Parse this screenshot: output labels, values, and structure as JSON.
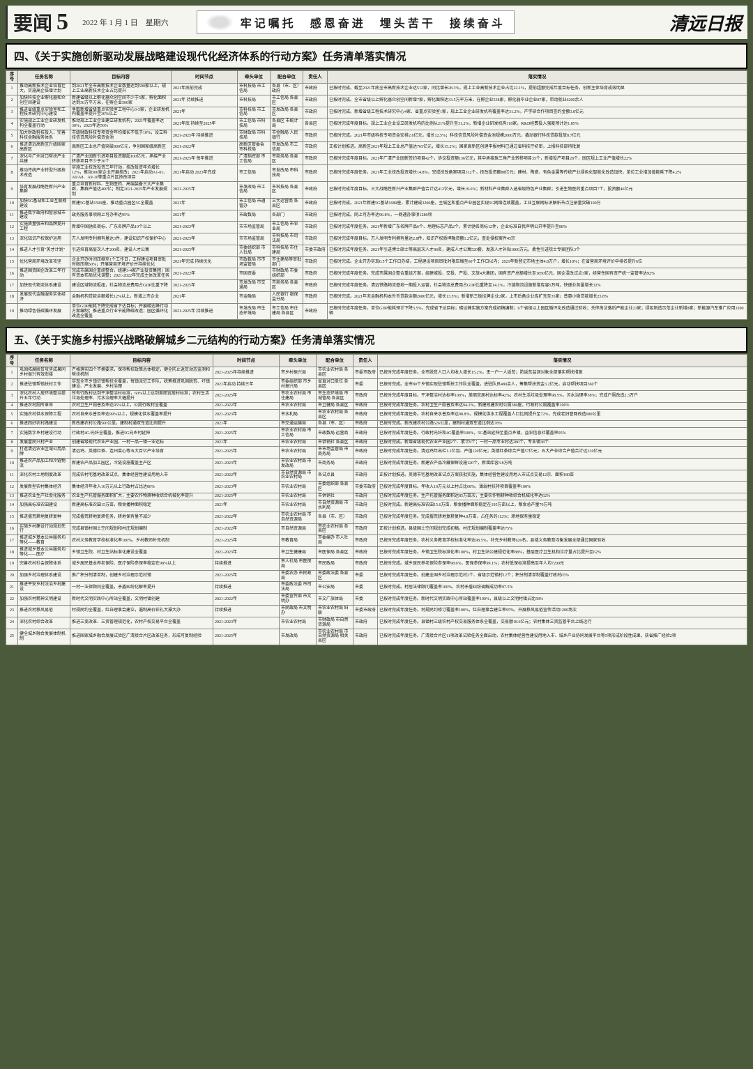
{
  "header": {
    "section": "要闻",
    "page": "5",
    "date": "2022 年 1 月 1 日　星期六",
    "slogan": "牢记嘱托　感恩奋进　埋头苦干　接续奋斗",
    "paper_name": "清远日报"
  },
  "section4": {
    "title": "四、《关于实施创新驱动发展战略建设现代化经济体系的行动方案》任务清单落实情况",
    "columns": [
      "序号",
      "任务名称",
      "目标内容",
      "时间节点",
      "牵头单位",
      "配合单位",
      "责任人",
      "落实情况"
    ],
    "rows": [
      {
        "i": "1",
        "name": "推动高新技术企业培育壮大，实施高企倍增计划",
        "goal": "到2021年全市高新技术企业数量达到500家以上，规上工业高新技术企业占比提升",
        "time": "2021年底前完成",
        "lead": "市科技局\n市工信局",
        "coop": "各县（市、区）政府",
        "resp": "市政府",
        "status": "已按时完成。截至2021年底全市高新技术企业达512家，同比增长28.3%，规上工业高新技术企业占比22.1%，提前超额完成年度目标任务，创新主体培育成效明显"
      },
      {
        "i": "2",
        "name": "加快科技企业孵化器和众创空间建设",
        "goal": "新建省级以上孵化器众创空间不少于5家，孵化面积达到30万平方米，在孵企业500家",
        "time": "2021年\n持续推进",
        "lead": "市科技局",
        "coop": "市工信局\n各县区",
        "resp": "市政府",
        "status": "已按时完成。全市省级以上孵化器众创空间新增7家，孵化面积达33.5万平方米，在孵企业538家，孵化器毕业企业87家，带动就业6200余人"
      },
      {
        "i": "3",
        "name": "推进省级重点实验室和工程技术研究中心建设",
        "goal": "争取新增省级重点实验室工程中心3-5家，企业研发机构覆盖率提升至30%以上",
        "time": "2021年",
        "lead": "市科技局\n市工信局",
        "coop": "市发改局\n各县区",
        "resp": "市政府",
        "status": "已按时完成。新增省级工程技术研究中心4家、省重点实验室1家，规上工业企业研发机构覆盖率达31.2%，产学研合作项目签约金额3.8亿元"
      },
      {
        "i": "4",
        "name": "实施规上工业企业研发机构全覆盖行动",
        "goal": "推动规上工业企业建立研发机构，2021年覆盖率达30%，2025年达50%",
        "time": "2021年底\n持续至2025年",
        "lead": "市工信局\n市科技局",
        "coop": "各县区\n市统计局",
        "resp": "各县区",
        "status": "已按时完成年度目标。规上工业企业设立研发机构的比例从21%提升至31.2%，新增企业研发机构118家，R&D经费投入强度预计达1.85%"
      },
      {
        "i": "5",
        "name": "加大财政科技投入，完善科技金融服务体系",
        "goal": "市级财政科技专项资金年均增长不低于10%，设立科技信贷风险补偿资金池",
        "time": "2021-2025年\n持续推进",
        "lead": "市财政局\n市科技局",
        "coop": "市金融局\n人民银行",
        "resp": "市政府",
        "status": "已按时完成。2021年市级科技专项资金安排2.6亿元，增长12.5%；科技信贷风险补偿资金池规模2000万元，撬动银行科技贷款投放8.7亿元"
      },
      {
        "i": "6",
        "name": "推进清远高新区升级国家高新区",
        "goal": "高新区工业总产值突破800亿元，争创国家级高新区",
        "time": "2021-2022年",
        "lead": "高新区管委会\n市科技局",
        "coop": "市发改局\n市工信局",
        "resp": "市政府",
        "status": "正按计划推进。高新区2021年规上工业总产值达765亿元，增长15.2%；国家高新区创建申报材料已通过省科技厅初审，上报科技部待批复"
      },
      {
        "i": "7",
        "name": "深化与广州对口帮扶产业共建",
        "goal": "广清产业园新引进项目投资额超100亿元，承接产业转移项目不少于30个",
        "time": "2021-2025年\n每年推进",
        "lead": "广清指挥部\n市工信局",
        "coop": "市商务局\n各县区",
        "resp": "市政府",
        "status": "已按时完成年度目标。2021年广清产业园新签约项目42个，协议投资额136亿元，其中承接珠三角产业转移项目35个，新增投产项目28个，园区规上工业产值增长22%"
      },
      {
        "i": "8",
        "name": "推动传统产业转型升级技术改造",
        "goal": "实施工业技改投资三年行动，技改投资年均增长12%，推动300家企业开展技改；2021年启动A1-01、A6/A8、A9-10等重点片区技改项目",
        "time": "2021年启动\n2023年完成",
        "lead": "市工信局",
        "coop": "市发改局\n市科技局",
        "resp": "市政府",
        "status": "已按时完成年度任务。2021年工业技改投资增长14.8%，完成技改备案项目312个，技改投资额88亿元；建材、陶瓷、有色金属等传统产业绿色化智能化改造加快，单位工业增加值能耗下降4.2%"
      },
      {
        "i": "9",
        "name": "培育发展战略性新兴产业集群",
        "goal": "重点培育新材料、生物医药、高端装备三大产业集群，集群产值达400亿；制定2021-2025年产业发展规划",
        "time": "2021-2025年",
        "lead": "市发改局\n市工信局",
        "coop": "市科技局\n各县区",
        "resp": "市政府",
        "status": "已按时完成年度目标。三大战略性新兴产业集群产值合计达412亿元，增长19.6%；新材料产业集群入选省级特色产业集群；引进生物医药重点项目7个，投资额46亿元"
      },
      {
        "i": "10",
        "name": "加快5G基站和工业互联网建设",
        "goal": "新建5G基站1500座，推动重点园区5G全覆盖",
        "time": "2021年",
        "lead": "市工信局\n市通管办",
        "coop": "三大运营商\n各县区",
        "resp": "市政府",
        "status": "已按时完成。2021年新建5G基站1680座，累计建成3200座，主城区和重点产业园区实现5G网络连续覆盖，工业互联网标识解析节点注册量突破100万"
      },
      {
        "i": "11",
        "name": "推进数字政府和智慧城市建设",
        "goal": "政务服务事项网上可办率达95%",
        "time": "2021年",
        "lead": "市政数局",
        "coop": "各部门",
        "resp": "市政府",
        "status": "已按时完成。网上可办率达96.8%，一网通办事项1280项"
      },
      {
        "i": "12",
        "name": "实施质量强市和品牌提升工程",
        "goal": "新增中国驰名商标、广东名牌产品10个以上",
        "time": "2021-2023年",
        "lead": "市市场监管局",
        "coop": "市工信局\n市农业局",
        "resp": "市政府",
        "status": "已按时完成年度任务。2021年新增广东名牌产品6个、地理标志产品2个，累计驰名商标12件，企业标准自我声明公开率提升至88%"
      },
      {
        "i": "13",
        "name": "深化知识产权保护运用",
        "goal": "万人发明专利拥有量达3件，建设知识产权保护中心",
        "time": "2021-2025年",
        "lead": "市市场监管局",
        "coop": "市科技局\n市司法局",
        "resp": "市政府",
        "status": "已按时完成年度目标。万人发明专利拥有量达2.8件，知识产权质押融资额1.2亿元，查处侵权案件45宗"
      },
      {
        "i": "14",
        "name": "推进人才引育\"英才计划\"",
        "goal": "引进培育高层次人才200名，建设人才公寓",
        "time": "2021-2025年",
        "lead": "市委组织部\n市人社局",
        "coop": "市科技局\n市住建局",
        "resp": "市委市政府",
        "status": "已按时完成年度任务。2021年引进博士硕士等高层次人才86名，建成人才公寓520套，发放人才补贴1800万元，柔性引进院士专家团队3个"
      },
      {
        "i": "15",
        "name": "优化营商环境改革攻坚",
        "goal": "企业开办时间压缩至1个工作日，工程建设项目审批时限压缩50%；开展营商环境评价并持续优化",
        "time": "2021年完成\n持续优化",
        "lead": "市政数局\n市市场监管局",
        "coop": "市住建局等审批部门",
        "resp": "市政府",
        "status": "已按时完成。企业开办实现0.5个工作日办结，工程建设项目审批时限压缩至60个工作日以内；2021年新登记市场主体4.8万户，增长18%；在省营商环境评价中排名提升6位"
      },
      {
        "i": "16",
        "name": "推进国资国企改革三年行动",
        "goal": "完成市属国企重组整合，组建3-4家产业投资集团；国有资本布局优化调整；2021-2022年完成主体改革任务",
        "time": "2021-2022年",
        "lead": "市国资委",
        "coop": "市财政局\n市委组织部",
        "resp": "市政府",
        "status": "已按时完成年度任务。完成市属国企整合重组方案，组建城投、交投、产投、文旅4大集团，国有资产总额增长至1850亿元，国企混改试点3家，经营性国有资产统一监管率达92%"
      },
      {
        "i": "17",
        "name": "加快现代物流体系建设",
        "goal": "建设区域物流枢纽，社会物流总费用占GDP比重下降",
        "time": "2021-2025年",
        "lead": "市发改局\n市交通局",
        "coop": "市商务局\n各县区",
        "resp": "市政府",
        "status": "已按时完成年度任务。清远铁路物流基地一期投入运营，社会物流总费用占GDP比重降至14.2%，冷链物流设施新增库容5万吨，快递业务量增长32%"
      },
      {
        "i": "18",
        "name": "发展现代金融服务实体经济",
        "goal": "金融机构贷款余额增长12%以上，新增上市企业",
        "time": "2021年",
        "lead": "市金融局",
        "coop": "人民银行\n银保监分局",
        "resp": "市政府",
        "status": "已按时完成。2021年末金融机构本外币贷款余额2680亿元，增长13.5%；新增新三板挂牌企业2家，上市后备企业库扩充至35家；普惠小微贷款增长25.8%"
      },
      {
        "i": "19",
        "name": "推动绿色低碳循环发展",
        "goal": "单位GDP能耗下降完成省下达目标；开展碳达峰行动方案编制；推进重点行业节能降碳改造；园区循环化改造全覆盖",
        "time": "2021-2025年\n持续推进",
        "lead": "市发改局\n市生态环境局",
        "coop": "市工信局\n市住建局\n各县区",
        "resp": "市政府",
        "status": "已按时完成年度任务。单位GDP能耗预计下降3.5%，完成省下达目标；碳达峰实施方案完成初稿编制；6个省级以上园区循环化改造通过验收；关停淘汰落后产能企业23家；绿色制造示范企业新增8家；新能源汽车推广应用3200辆"
      }
    ]
  },
  "section5": {
    "title": "五、《关于实施乡村振兴战略破解城乡二元结构的行动方案》任务清单落实情况",
    "columns": [
      "序号",
      "任务名称",
      "目标内容",
      "时间节点",
      "牵头单位",
      "配合单位",
      "责任人",
      "落实情况"
    ],
    "rows": [
      {
        "i": "1",
        "name": "巩固拓展脱贫攻坚成果同乡村振兴有效衔接",
        "goal": "严格落实四个不摘要求，保持帮扶政策总体稳定，健全防止返贫动态监测和帮扶机制",
        "time": "2021-2025年持续推进",
        "lead": "市乡村振兴局",
        "coop": "市农业农村局\n各县区",
        "resp": "市委市政府",
        "status": "已按时完成年度任务。全市脱贫人口人均收入增长15.2%，无一户一人返贫；防返贫监测对象全部落实帮扶措施"
      },
      {
        "i": "2",
        "name": "推进驻镇帮镇扶村工作",
        "goal": "实现全市乡镇驻镇帮扶全覆盖，每镇派驻工作队，统筹推进巩固脱贫、圩镇建设、产业发展、乡村治理",
        "time": "2021年启动\n持续三年",
        "lead": "市委组织部\n市乡村振兴局",
        "coop": "省直对口单位\n各县区",
        "resp": "市委",
        "status": "已按时完成。全市80个乡镇实现驻镇帮扶工作队全覆盖，进驻队员480余人，筹集帮扶资金3.2亿元，启动帮扶项目560个"
      },
      {
        "i": "3",
        "name": "深化农村人居环境整治提升五年行动",
        "goal": "所有行政村达到干净整洁村标准，60%以上达到美丽宜居村标准；农村生活垃圾处理率、污水治理率大幅提升",
        "time": "2021-2025年",
        "lead": "市农业农村局\n市住建局",
        "coop": "市生态环境局\n市城管局\n各县区",
        "resp": "市政府",
        "status": "已按时完成年度目标。干净整洁村达标率100%，美丽宜居村达标率42%；农村生活垃圾处理率98.5%，污水治理率58%；完成户厕改造2.3万户"
      },
      {
        "i": "4",
        "name": "推进农村厕所革命",
        "goal": "农村卫生户厕普及率达95%以上，公厕行政村全覆盖",
        "time": "2021-2022年",
        "lead": "市农业农村局",
        "coop": "市卫健局\n各县区",
        "resp": "市政府",
        "status": "已按时完成年度任务。农村卫生户厕普及率达94.2%，新建改建农村公厕380座，行政村公厕覆盖率100%"
      },
      {
        "i": "5",
        "name": "实施农村供水保障工程",
        "goal": "农村自来水普及率达99%以上，规模化供水覆盖率提升",
        "time": "2021-2023年",
        "lead": "市水利局",
        "coop": "市农业农村局\n各县区",
        "resp": "市政府",
        "status": "已按时完成年度任务。农村自来水普及率达98.8%，规模化供水工程覆盖人口比例提升至72%，完成老旧管网改造680公里"
      },
      {
        "i": "6",
        "name": "推进四好农村路建设",
        "goal": "新改建农村公路500公里，建制村通双车道比例提升",
        "time": "2021年",
        "lead": "市交通运输局",
        "coop": "各县（市、区）",
        "resp": "市政府",
        "status": "已按时完成。新改建农村公路526公里，建制村通双车道比例达78%"
      },
      {
        "i": "7",
        "name": "实施数字乡村建设行动",
        "goal": "行政村4G/光纤全覆盖，推进5G向乡村延伸",
        "time": "2021-2025年",
        "lead": "市农业农村局\n市工信局",
        "coop": "市政数局\n运营商",
        "resp": "市政府",
        "status": "已按时完成年度任务。行政村光纤和4G覆盖率100%，5G基站延伸至重点乡镇，益农信息社覆盖率95%"
      },
      {
        "i": "8",
        "name": "发展富民兴村产业",
        "goal": "创建省级现代农业产业园，一村一品一镇一业达标",
        "time": "2021年",
        "lead": "市农业农村局",
        "coop": "市供销社\n各县区",
        "resp": "市政府",
        "status": "已按时完成。新增省级现代农业产业园2个、累计9个；一村一品专业村达280个，专业镇38个"
      },
      {
        "i": "9",
        "name": "打造清远农业区域公用品牌",
        "goal": "清远鸡、英德红茶、连州菜心等五大百亿产业培育",
        "time": "2021-2025年",
        "lead": "市农业农村局",
        "coop": "市市场监管局\n市商务局",
        "resp": "市政府",
        "status": "已按时完成年度任务。清远鸡年出栏1.2亿羽、产值120亿元；英德红茶综合产值57亿元；五大产业综合产值合计达310亿元"
      },
      {
        "i": "10",
        "name": "推进农产品加工和冷链物流",
        "goal": "新建农产品加工园区，冷链设施覆盖主产区",
        "time": "2021-2023年",
        "lead": "市农业农村局\n市发改局",
        "coop": "市商务局",
        "resp": "市政府",
        "status": "已按时完成年度任务。新建农产品冷藏保鲜设施120个，新增库容3.8万吨"
      },
      {
        "i": "11",
        "name": "深化农村土地制度改革",
        "goal": "完成农村宅基地改革试点，集体经营性建设用地入市",
        "time": "2021-2022年",
        "lead": "市自然资源局\n市农业农村局",
        "coop": "各试点县",
        "resp": "市政府",
        "status": "正按计划推进。英德市宅基地改革试点方案获批实施，集体经营性建设用地入市试点交易12宗、面积180亩"
      },
      {
        "i": "12",
        "name": "发展新型农村集体经济",
        "goal": "集体经济年收入10万元以上行政村占比达80%",
        "time": "2021-2023年",
        "lead": "市农业农村局",
        "coop": "市委组织部\n各县区",
        "resp": "市委市政府",
        "status": "已按时完成年度目标。年收入10万元以上村占比68%，薄弱村扶持项目覆盖率100%"
      },
      {
        "i": "13",
        "name": "推进农业生产社会化服务",
        "goal": "农业生产托管服务面积扩大，主要农作物耕种收综合机械化率提升",
        "time": "2021-2025年",
        "lead": "市农业农村局",
        "coop": "市供销社",
        "resp": "市政府",
        "status": "已按时完成年度任务。生产托管服务面积达85万亩次，主要农作物耕种收综合机械化率达62%"
      },
      {
        "i": "14",
        "name": "加强高标准农田建设",
        "goal": "新建高标准农田15万亩，粮食播种面积稳定",
        "time": "2021年",
        "lead": "市农业农村局",
        "coop": "市自然资源局\n市水利局",
        "resp": "市政府",
        "status": "已按时完成。新建高标准农田15.6万亩，粮食播种面积稳定在195万亩以上，粮食总产量70万吨"
      },
      {
        "i": "15",
        "name": "推进撂荒耕地复耕复种",
        "goal": "完成撂荒耕地复耕任务，耕地保有量不减少",
        "time": "2021-2022年",
        "lead": "市农业农村局\n市自然资源局",
        "coop": "各县（市、区）",
        "resp": "市政府",
        "status": "已按时完成年度任务。完成撂荒耕地复耕复种4.8万亩，占任务的112%；耕地保有量稳定"
      },
      {
        "i": "16",
        "name": "实施乡村建设行动规划先行",
        "goal": "完成县镇村国土空间规划和村庄规划编制",
        "time": "2021-2022年",
        "lead": "市自然资源局",
        "coop": "市农业农村局\n各县区",
        "resp": "市政府",
        "status": "正按计划推进。县级国土空间规划完成初稿，村庄规划编制覆盖率达75%"
      },
      {
        "i": "17",
        "name": "推进城乡基本公共服务均等化——教育",
        "goal": "农村义务教育学校标准化率100%，乡村教师补充机制",
        "time": "2021-2025年",
        "lead": "市教育局",
        "coop": "市委编办\n市人社局",
        "resp": "市政府",
        "status": "已按时完成年度任务。农村义务教育学校标准化率达98.5%，补充乡村教师620名，县域义务教育均衡发展全部通过国家验收"
      },
      {
        "i": "18",
        "name": "推进城乡基本公共服务均等化——医疗",
        "goal": "乡镇卫生院、村卫生站标准化建设全覆盖",
        "time": "2021-2023年",
        "lead": "市卫生健康局",
        "coop": "市医保局\n各县区",
        "resp": "市政府",
        "status": "已按时完成年度任务。乡镇卫生院标准化率100%，村卫生站公建规范化率88%，基层医疗卫生机构诊疗量占比提升至62%"
      },
      {
        "i": "19",
        "name": "完善农村社会保障体系",
        "goal": "城乡居民基本养老保险、医疗保险参保率稳定在98%以上",
        "time": "持续推进",
        "lead": "市人社局\n市医保局",
        "coop": "市民政局",
        "resp": "市政府",
        "status": "已按时完成。城乡居民养老保险参保率98.6%，医保参保率99.1%；农村低保标准提高至年人均7200元"
      },
      {
        "i": "20",
        "name": "加强乡村治理体系建设",
        "goal": "推广积分制清单制，创建乡村治理示范村镇",
        "time": "2021-2025年",
        "lead": "市委农办\n市民政局",
        "coop": "市委政法委\n各县区",
        "resp": "市委",
        "status": "已按时完成年度任务。创建全国乡村治理示范村2个、省级示范镇村12个；积分制清单制覆盖行政村65%"
      },
      {
        "i": "21",
        "name": "推进平安乡村法治乡村建设",
        "goal": "一村一法律顾问全覆盖，矛盾纠纷化解率提升",
        "time": "持续推进",
        "lead": "市委政法委\n市司法局",
        "coop": "市公安局",
        "resp": "市委",
        "status": "已按时完成。村居法律顾问覆盖率100%，农村矛盾纠纷调解成功率97.5%"
      },
      {
        "i": "22",
        "name": "加强农村精神文明建设",
        "goal": "新时代文明实践中心所站全覆盖，文明村镇创建",
        "time": "2021-2022年",
        "lead": "市委宣传部\n市文明办",
        "coop": "市文广旅体局",
        "resp": "市委",
        "status": "已按时完成年度任务。新时代文明实践中心所站覆盖率100%，县级以上文明村镇占比58%"
      },
      {
        "i": "23",
        "name": "推进农村移风易俗",
        "goal": "村规民约全覆盖，红白理事会建立，遏制高价彩礼大操大办",
        "time": "持续推进",
        "lead": "市民政局\n市文明办",
        "coop": "市农业农村局\n妇联",
        "resp": "市委市政府",
        "status": "已按时完成年度任务。村规民约修订覆盖率100%，红白理事会建立率95%，开展移风易俗宣传活动1200场次"
      },
      {
        "i": "24",
        "name": "深化农村综合改革",
        "goal": "推进三变改革、三资管理规范化，农村产权交易平台全覆盖",
        "time": "2021-2023年",
        "lead": "市农业农村局",
        "coop": "市财政局\n市自然资源局",
        "resp": "市政府",
        "status": "已按时完成年度任务。县镇村三级农村产权交易服务体系全覆盖，交易额18.6亿元；农村集体三资监管平台上线运行"
      },
      {
        "i": "25",
        "name": "健全城乡融合发展体制机制",
        "goal": "推进国家城乡融合发展试验区广清接合片区改革任务，形成可复制经验",
        "time": "2021-2025年",
        "lead": "市发改局",
        "coop": "市农业农村局\n市自然资源局\n相关县区",
        "resp": "市政府",
        "status": "已按时完成年度任务。广清接合片区11项改革试验任务全面启动，农村集体经营性建设用地入市、城乡产业协同发展平台等5项形成阶段性成果，获省推广经验2项"
      }
    ]
  }
}
